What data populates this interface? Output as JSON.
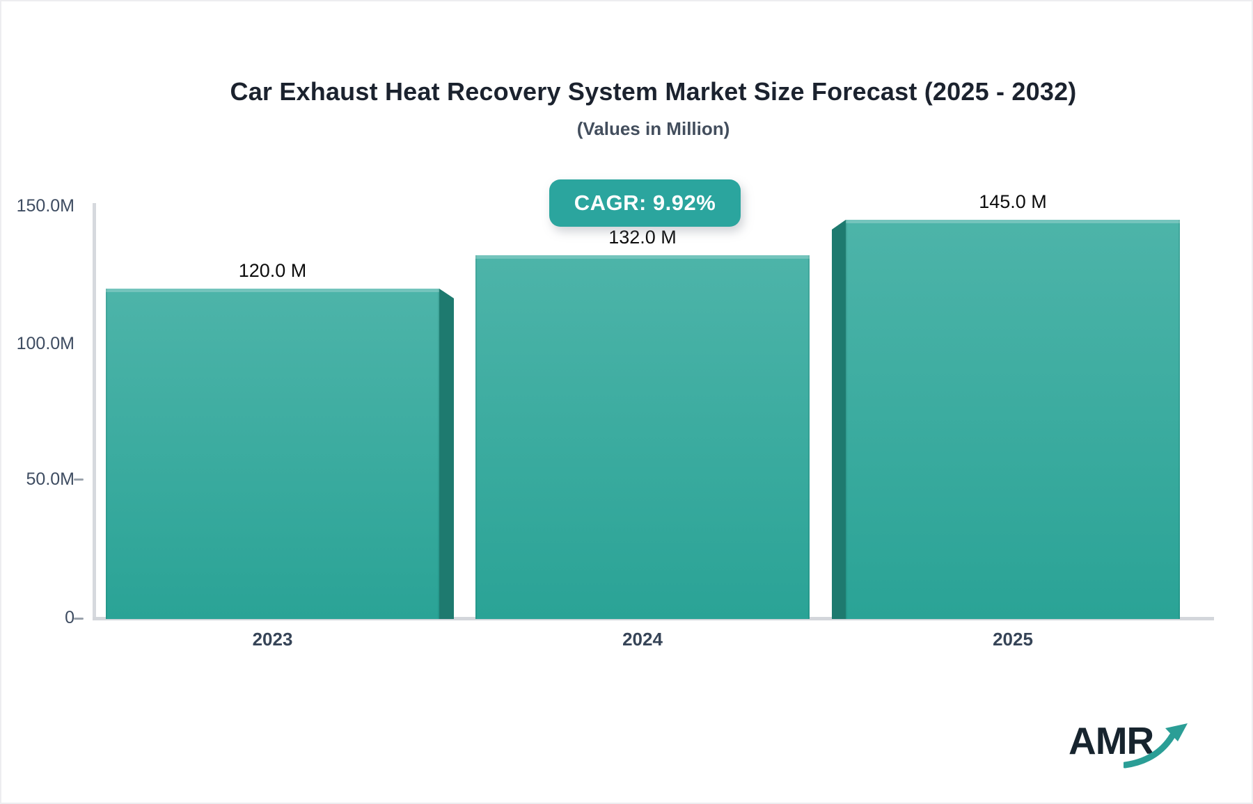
{
  "chart_data": {
    "type": "bar",
    "title": "Car Exhaust Heat Recovery System Market Size Forecast (2025 - 2032)",
    "subtitle": "(Values in Million)",
    "categories": [
      "2023",
      "2024",
      "2025"
    ],
    "values": [
      120.0,
      132.0,
      145.0
    ],
    "value_labels": [
      "120.0 M",
      "132.0 M",
      "145.0 M"
    ],
    "unit": "Million",
    "ylim": [
      0,
      150
    ],
    "yticks": [
      "150.0M",
      "100.0M",
      "50.0M",
      "0"
    ],
    "grid": "off",
    "bar_color_top": "#4db4a9",
    "bar_color_bottom": "#2aa396",
    "bar_side_color": "#1e7a6f",
    "axis_color": "#d5d8de"
  },
  "cagr_badge": {
    "label": "CAGR: 9.92%",
    "color": "#2ba59e"
  },
  "logo": {
    "text": "AMR",
    "text_color": "#17242e",
    "arrow_color": "#2b9e96"
  }
}
